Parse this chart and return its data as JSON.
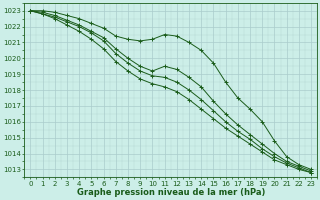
{
  "title": "Graphe pression niveau de la mer (hPa)",
  "bg_color": "#cceee8",
  "grid_color_major": "#aacccc",
  "line_color": "#1a5c1a",
  "xlim_min": -0.5,
  "xlim_max": 23.5,
  "ylim_min": 1012.5,
  "ylim_max": 1023.5,
  "yticks": [
    1013,
    1014,
    1015,
    1016,
    1017,
    1018,
    1019,
    1020,
    1021,
    1022,
    1023
  ],
  "xticks": [
    0,
    1,
    2,
    3,
    4,
    5,
    6,
    7,
    8,
    9,
    10,
    11,
    12,
    13,
    14,
    15,
    16,
    17,
    18,
    19,
    20,
    21,
    22,
    23
  ],
  "series": [
    [
      1023.0,
      1023.0,
      1022.9,
      1022.7,
      1022.5,
      1022.2,
      1021.9,
      1021.4,
      1021.2,
      1021.1,
      1021.2,
      1021.5,
      1021.4,
      1021.0,
      1020.5,
      1019.7,
      1018.5,
      1017.5,
      1016.8,
      1016.0,
      1014.8,
      1013.8,
      1013.3,
      1013.0
    ],
    [
      1023.0,
      1022.9,
      1022.7,
      1022.4,
      1022.1,
      1021.7,
      1021.3,
      1020.6,
      1020.0,
      1019.5,
      1019.2,
      1019.5,
      1019.3,
      1018.8,
      1018.2,
      1017.3,
      1016.5,
      1015.8,
      1015.2,
      1014.6,
      1014.0,
      1013.5,
      1013.2,
      1012.9
    ],
    [
      1023.0,
      1022.8,
      1022.6,
      1022.3,
      1022.0,
      1021.6,
      1021.1,
      1020.3,
      1019.7,
      1019.2,
      1018.9,
      1018.8,
      1018.5,
      1018.0,
      1017.4,
      1016.7,
      1016.0,
      1015.4,
      1014.9,
      1014.3,
      1013.8,
      1013.4,
      1013.1,
      1012.8
    ],
    [
      1023.0,
      1022.8,
      1022.5,
      1022.1,
      1021.7,
      1021.2,
      1020.6,
      1019.8,
      1019.2,
      1018.7,
      1018.4,
      1018.2,
      1017.9,
      1017.4,
      1016.8,
      1016.2,
      1015.6,
      1015.1,
      1014.6,
      1014.1,
      1013.6,
      1013.3,
      1013.0,
      1012.8
    ]
  ],
  "tick_fontsize": 5.0,
  "xlabel_fontsize": 6.0,
  "linewidth": 0.7,
  "markersize": 3.0
}
